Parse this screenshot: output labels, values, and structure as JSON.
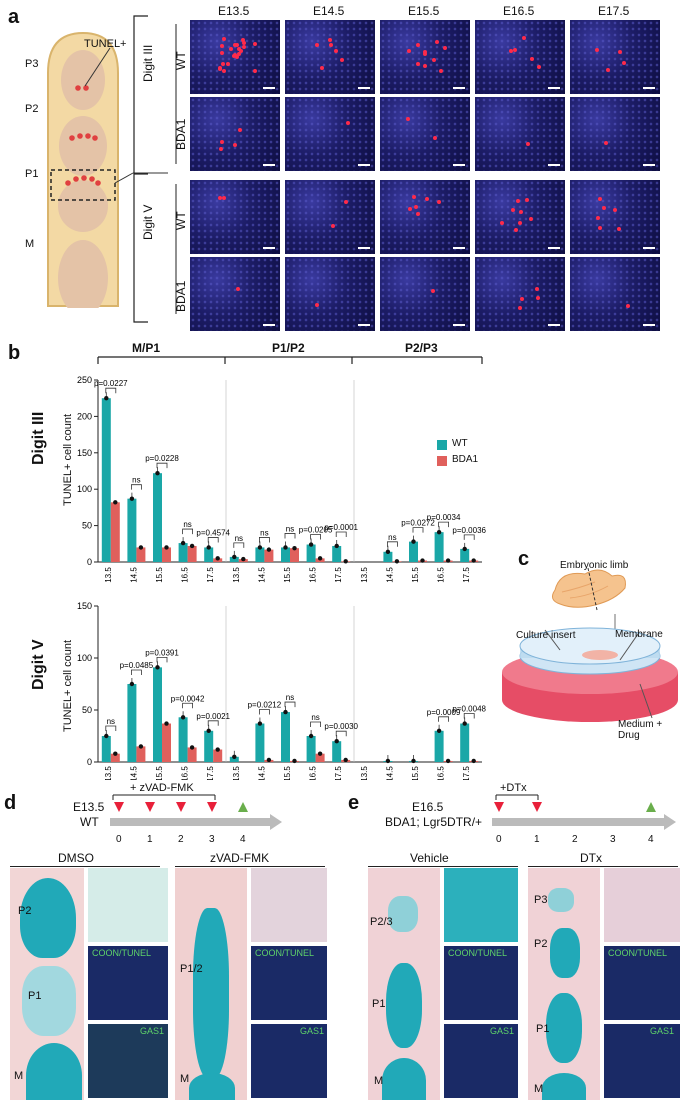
{
  "panel_a": {
    "label": "a",
    "digit_labels": {
      "p3": "P3",
      "p2": "P2",
      "p1": "P1",
      "m": "M"
    },
    "tunel_label": "TUNEL+",
    "ages": [
      "E13.5",
      "E14.5",
      "E15.5",
      "E16.5",
      "E17.5"
    ],
    "groups": [
      {
        "digit": "Digit III",
        "rows": [
          "WT",
          "BDA1"
        ]
      },
      {
        "digit": "Digit V",
        "rows": [
          "WT",
          "BDA1"
        ]
      }
    ]
  },
  "panel_b": {
    "label": "b",
    "sections": [
      "M/P1",
      "P1/P2",
      "P2/P3"
    ],
    "ylabel": "TUNEL+ cell count",
    "legend": [
      "WT",
      "BDA1"
    ],
    "colors": {
      "wt": "#1aa7a7",
      "bda1": "#e0605c"
    }
  },
  "chart_data": [
    {
      "type": "bar",
      "title": "Digit III",
      "ylabel": "TUNEL+ cell count",
      "ylim": [
        0,
        250
      ],
      "yticks": [
        0,
        50,
        100,
        150,
        200,
        250
      ],
      "categories": [
        "13.5",
        "14.5",
        "15.5",
        "16.5",
        "17.5",
        "13.5",
        "14.5",
        "15.5",
        "16.5",
        "17.5",
        "13.5",
        "14.5",
        "15.5",
        "16.5",
        "17.5"
      ],
      "series": [
        {
          "name": "WT",
          "values": [
            225,
            87,
            122,
            26,
            20,
            7,
            20,
            20,
            24,
            22,
            0,
            14,
            28,
            41,
            18
          ]
        },
        {
          "name": "BDA1",
          "values": [
            82,
            20,
            20,
            22,
            5,
            4,
            17,
            19,
            5,
            1,
            0,
            1,
            2,
            2,
            2
          ]
        }
      ],
      "annotations": [
        {
          "group": 0,
          "text": "p=0.0227"
        },
        {
          "group": 1,
          "text": "ns"
        },
        {
          "group": 2,
          "text": "p=0.0228"
        },
        {
          "group": 3,
          "text": "ns"
        },
        {
          "group": 4,
          "text": "p=0.4574"
        },
        {
          "group": 5,
          "text": "ns"
        },
        {
          "group": 6,
          "text": "ns"
        },
        {
          "group": 7,
          "text": "ns"
        },
        {
          "group": 8,
          "text": "p=0.0205"
        },
        {
          "group": 9,
          "text": "p=0.0001"
        },
        {
          "group": 11,
          "text": "ns"
        },
        {
          "group": 12,
          "text": "p=0.0272"
        },
        {
          "group": 13,
          "text": "p=0.0034"
        },
        {
          "group": 14,
          "text": "p=0.0036"
        }
      ]
    },
    {
      "type": "bar",
      "title": "Digit V",
      "ylabel": "TUNEL+ cell count",
      "ylim": [
        0,
        150
      ],
      "yticks": [
        0,
        50,
        100,
        150
      ],
      "categories": [
        "13.5",
        "14.5",
        "15.5",
        "16.5",
        "17.5",
        "13.5",
        "14.5",
        "15.5",
        "16.5",
        "17.5",
        "13.5",
        "14.5",
        "15.5",
        "16.5",
        "17.5"
      ],
      "series": [
        {
          "name": "WT",
          "values": [
            25,
            75,
            91,
            43,
            30,
            5,
            37,
            48,
            25,
            20,
            0,
            1,
            1,
            30,
            37
          ]
        },
        {
          "name": "BDA1",
          "values": [
            8,
            15,
            37,
            14,
            12,
            0,
            2,
            1,
            8,
            2,
            0,
            0,
            0,
            1,
            1
          ]
        }
      ],
      "annotations": [
        {
          "group": 0,
          "text": "ns"
        },
        {
          "group": 1,
          "text": "p=0.0485"
        },
        {
          "group": 2,
          "text": "p=0.0391"
        },
        {
          "group": 3,
          "text": "p=0.0042"
        },
        {
          "group": 4,
          "text": "p=0.0021"
        },
        {
          "group": 6,
          "text": "p=0.0212"
        },
        {
          "group": 7,
          "text": "ns"
        },
        {
          "group": 8,
          "text": "ns"
        },
        {
          "group": 9,
          "text": "p=0.0030"
        },
        {
          "group": 13,
          "text": "p=0.0009"
        },
        {
          "group": 14,
          "text": "p=0.0048"
        }
      ]
    }
  ],
  "panel_c": {
    "label": "c",
    "embryonic_limb": "Embryonic limb",
    "culture_insert": "Culture insert",
    "membrane": "Membrane",
    "medium": "Medium + Drug"
  },
  "panel_d": {
    "label": "d",
    "stage": "E13.5",
    "genotype": "WT",
    "treatment": "+ zVAD-FMK",
    "days": [
      "0",
      "1",
      "2",
      "3",
      "4"
    ],
    "conditions": [
      "DMSO",
      "zVAD-FMK"
    ],
    "dmso_labels": {
      "p2": "P2",
      "p1": "P1",
      "m": "M"
    },
    "zvad_labels": {
      "p12": "P1/2",
      "m": "M"
    },
    "stain1": "COON/TUNEL",
    "stain2": "GAS1"
  },
  "panel_e": {
    "label": "e",
    "stage": "E16.5",
    "genotype": "BDA1; Lgr5DTR/+",
    "treatment": "+DTx",
    "days": [
      "0",
      "1",
      "2",
      "3",
      "4"
    ],
    "conditions": [
      "Vehicle",
      "DTx"
    ],
    "vehicle_labels": {
      "p23": "P2/3",
      "p1": "P1",
      "m": "M"
    },
    "dtx_labels": {
      "p3": "P3",
      "p2": "P2",
      "p1": "P1",
      "m": "M"
    },
    "stain1": "COON/TUNEL",
    "stain2": "GAS1"
  }
}
